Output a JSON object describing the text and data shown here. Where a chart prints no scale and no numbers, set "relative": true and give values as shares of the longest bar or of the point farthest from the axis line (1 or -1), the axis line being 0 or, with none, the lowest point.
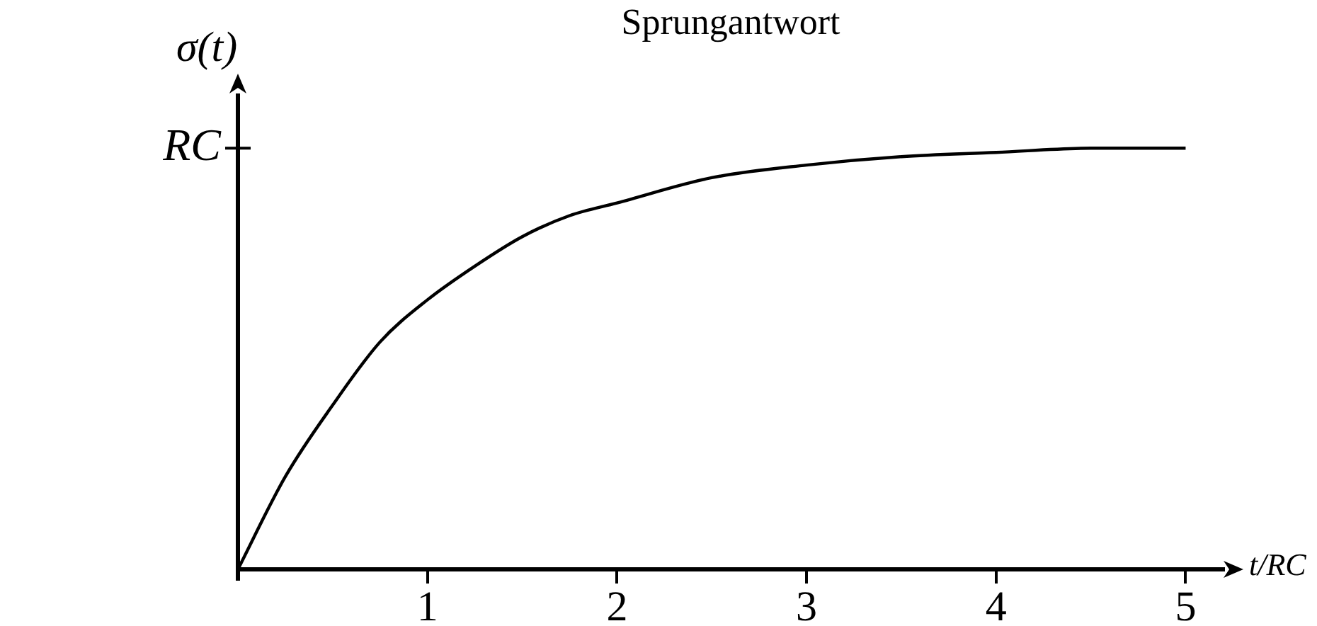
{
  "chart_data": {
    "type": "line",
    "title": "Sprungantwort",
    "xlabel": "t/RC",
    "ylabel": "σ(t)",
    "relative": true,
    "annotations": [
      "RC"
    ],
    "x": [
      0,
      0.25,
      0.5,
      0.75,
      1,
      1.25,
      1.5,
      1.75,
      2,
      2.5,
      3,
      3.5,
      4,
      4.5,
      5
    ],
    "series": [
      {
        "color": "#000000",
        "values": [
          0,
          0.22,
          0.39,
          0.54,
          0.64,
          0.72,
          0.79,
          0.84,
          0.87,
          0.93,
          0.96,
          0.98,
          0.99,
          1,
          1
        ]
      }
    ],
    "xlim": [
      0,
      5.2
    ],
    "xticks": [
      1,
      2,
      3,
      4,
      5
    ]
  }
}
